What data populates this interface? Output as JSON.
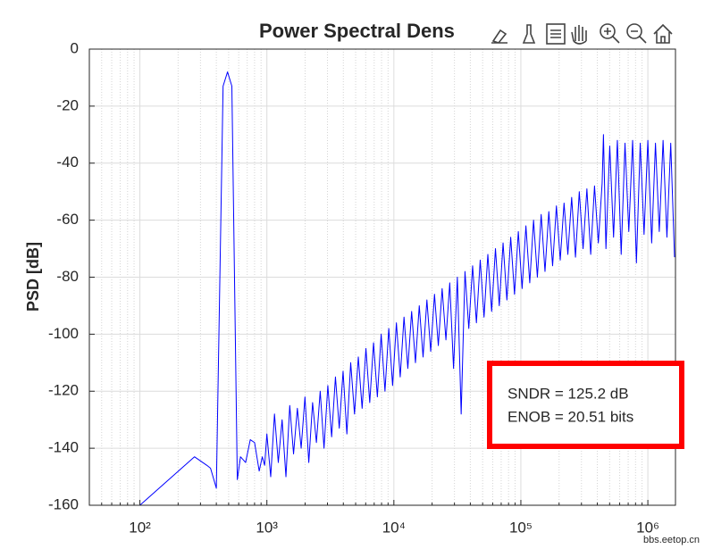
{
  "chart_data": {
    "type": "line",
    "title": "Power Spectral Dens",
    "ylabel": "PSD [dB]",
    "color": "#0000ff",
    "xscale": "log",
    "grid": true,
    "xlim": [
      40,
      1650000
    ],
    "ylim": [
      -160,
      0
    ],
    "xticks": [
      {
        "value": 100,
        "label": "10²"
      },
      {
        "value": 1000,
        "label": "10³"
      },
      {
        "value": 10000,
        "label": "10⁴"
      },
      {
        "value": 100000,
        "label": "10⁵"
      },
      {
        "value": 1000000,
        "label": "10⁶"
      }
    ],
    "xminorticks": [
      50,
      60,
      70,
      80,
      90,
      200,
      300,
      400,
      500,
      600,
      700,
      800,
      900,
      2000,
      3000,
      4000,
      5000,
      6000,
      7000,
      8000,
      9000,
      20000,
      30000,
      40000,
      50000,
      60000,
      70000,
      80000,
      90000,
      200000,
      300000,
      400000,
      500000,
      600000,
      700000,
      800000,
      900000
    ],
    "yticks": [
      0,
      -20,
      -40,
      -60,
      -80,
      -100,
      -120,
      -140,
      -160
    ],
    "x": [
      100,
      269,
      337,
      360,
      400,
      452,
      490,
      530,
      585,
      620,
      680,
      740,
      800,
      870,
      920,
      960,
      1000,
      1072,
      1148,
      1230,
      1318,
      1413,
      1514,
      1622,
      1738,
      1862,
      1995,
      2138,
      2291,
      2455,
      2630,
      2818,
      3020,
      3236,
      3467,
      3715,
      3981,
      4266,
      4571,
      4898,
      5248,
      5623,
      6026,
      6457,
      6918,
      7413,
      7943,
      8511,
      9120,
      9772,
      10470,
      11220,
      12020,
      12880,
      13800,
      14790,
      15850,
      16980,
      18200,
      19500,
      20890,
      22390,
      23990,
      25700,
      27540,
      29510,
      31620,
      33880,
      36310,
      38900,
      41690,
      44670,
      47860,
      51290,
      54950,
      58880,
      63100,
      67610,
      72440,
      77620,
      83180,
      89130,
      95500,
      102300,
      109600,
      117500,
      125900,
      134900,
      144500,
      154900,
      166000,
      177800,
      190500,
      204200,
      218800,
      234400,
      251200,
      269200,
      288400,
      309000,
      331100,
      354800,
      380200,
      407400,
      436500,
      447000,
      467700,
      501200,
      537000,
      575400,
      616600,
      660700,
      707900,
      758600,
      812800,
      871000,
      933300,
      1000000,
      1072000,
      1148000,
      1230000,
      1318000,
      1413000,
      1514000,
      1622000
    ],
    "values": [
      -160,
      -143,
      -146,
      -147,
      -154,
      -13,
      -8,
      -13,
      -151,
      -143,
      -145,
      -137,
      -138,
      -148,
      -143,
      -146,
      -135,
      -150,
      -128,
      -145,
      -130,
      -150,
      -125,
      -142,
      -126,
      -140,
      -122,
      -145,
      -124,
      -138,
      -120,
      -140,
      -118,
      -136,
      -115,
      -133,
      -113,
      -135,
      -110,
      -128,
      -108,
      -126,
      -105,
      -124,
      -103,
      -122,
      -100,
      -120,
      -98,
      -118,
      -96,
      -115,
      -94,
      -112,
      -92,
      -110,
      -90,
      -108,
      -88,
      -106,
      -86,
      -104,
      -84,
      -102,
      -82,
      -112,
      -80,
      -128,
      -78,
      -98,
      -76,
      -96,
      -74,
      -94,
      -72,
      -92,
      -70,
      -90,
      -68,
      -88,
      -66,
      -86,
      -64,
      -84,
      -62,
      -82,
      -60,
      -80,
      -58,
      -78,
      -57,
      -76,
      -55,
      -74,
      -54,
      -72,
      -52,
      -73,
      -50,
      -70,
      -49,
      -72,
      -48,
      -68,
      -47,
      -30,
      -70,
      -34,
      -66,
      -32,
      -72,
      -33,
      -64,
      -32,
      -75,
      -33,
      -65,
      -32,
      -68,
      -33,
      -64,
      -32,
      -66,
      -33,
      -73
    ],
    "annotations": [
      "SNDR = 125.2 dB",
      "ENOB = 20.51 bits"
    ],
    "watermark": "bbs.eetop.cn"
  }
}
